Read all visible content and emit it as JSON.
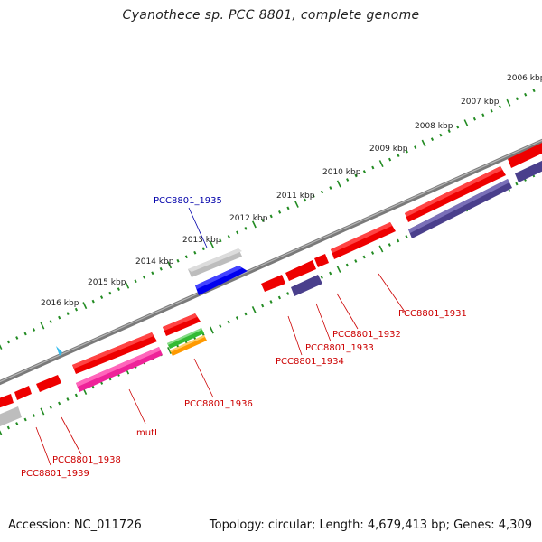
{
  "title": "Cyanothece sp. PCC 8801, complete genome",
  "footer": {
    "accession": "Accession: NC_011726",
    "summary": "Topology: circular; Length: 4,679,413 bp; Genes: 4,309"
  },
  "ruler_labels": [
    "2006 kbp",
    "2007 kbp",
    "2008 kbp",
    "2009 kbp",
    "2010 kbp",
    "2011 kbp",
    "2012 kbp",
    "2013 kbp",
    "2014 kbp",
    "2015 kbp",
    "2016 kbp"
  ],
  "gene_labels": {
    "g1935": "PCC8801_1935",
    "g1931": "PCC8801_1931",
    "g1932": "PCC8801_1932",
    "g1933": "PCC8801_1933",
    "g1934": "PCC8801_1934",
    "g1936": "PCC8801_1936",
    "mutL": "mutL",
    "g1938": "PCC8801_1938",
    "g1939": "PCC8801_1939"
  },
  "colors": {
    "red": "#ee0000",
    "navy": "#4a3f8c",
    "blue": "#0000ee",
    "gray": "#b8b8b8",
    "pink": "#ee2299",
    "green": "#33bb33",
    "orange": "#ff9900",
    "cyan": "#33bbee",
    "tick_green": "#228b22",
    "label_red": "#cc0000",
    "label_blue": "#0000aa"
  }
}
